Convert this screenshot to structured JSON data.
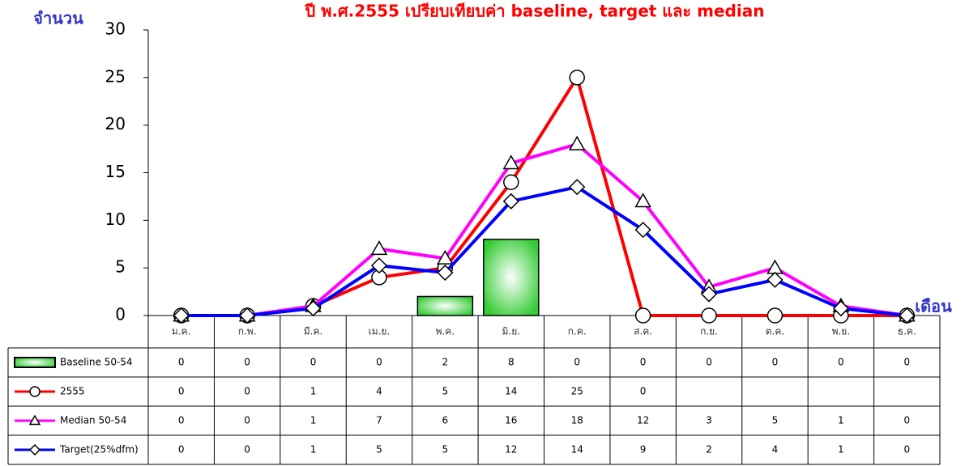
{
  "chart_data": {
    "type": "line",
    "title": "ปี พ.ศ.2555 เปรียบเทียบค่า baseline, target และ median",
    "y_label": "จำนวน",
    "x_label": "เดือน",
    "categories": [
      "ม.ค.",
      "ก.พ.",
      "มี.ค.",
      "เม.ย.",
      "พ.ค.",
      "มิ.ย.",
      "ก.ค.",
      "ส.ค.",
      "ก.ย.",
      "ต.ค.",
      "พ.ย.",
      "ธ.ค."
    ],
    "ylim": [
      0,
      30
    ],
    "yticks": [
      0,
      5,
      10,
      15,
      20,
      25,
      30
    ],
    "series": [
      {
        "name": "Baseline 50-54",
        "type": "bar",
        "color": "#33cc33",
        "values": [
          0,
          0,
          0,
          0,
          2,
          8,
          0,
          0,
          0,
          0,
          0,
          0
        ]
      },
      {
        "name": "2555",
        "type": "line",
        "marker": "circle",
        "color": "#ff0000",
        "values": [
          0,
          0,
          1,
          4,
          5,
          14,
          25,
          0,
          0,
          0,
          0,
          0
        ],
        "value_labels": [
          "0",
          "0",
          "1",
          "4",
          "5",
          "14",
          "25",
          "0",
          null,
          null,
          null,
          null
        ]
      },
      {
        "name": "Median 50-54",
        "type": "line",
        "marker": "triangle",
        "color": "#ff00ff",
        "values": [
          0,
          0,
          1,
          7,
          6,
          16,
          18,
          12,
          3,
          5,
          1,
          0
        ]
      },
      {
        "name": "Target(25%dfm)",
        "type": "line",
        "marker": "diamond",
        "color": "#0000ff",
        "values": [
          0,
          0,
          0.75,
          5.25,
          4.5,
          12,
          13.5,
          9,
          2.25,
          3.75,
          0.75,
          0
        ],
        "value_labels": [
          "0",
          "0",
          "1",
          "5",
          "5",
          "12",
          "14",
          "9",
          "2",
          "4",
          "1",
          "0"
        ]
      }
    ]
  }
}
